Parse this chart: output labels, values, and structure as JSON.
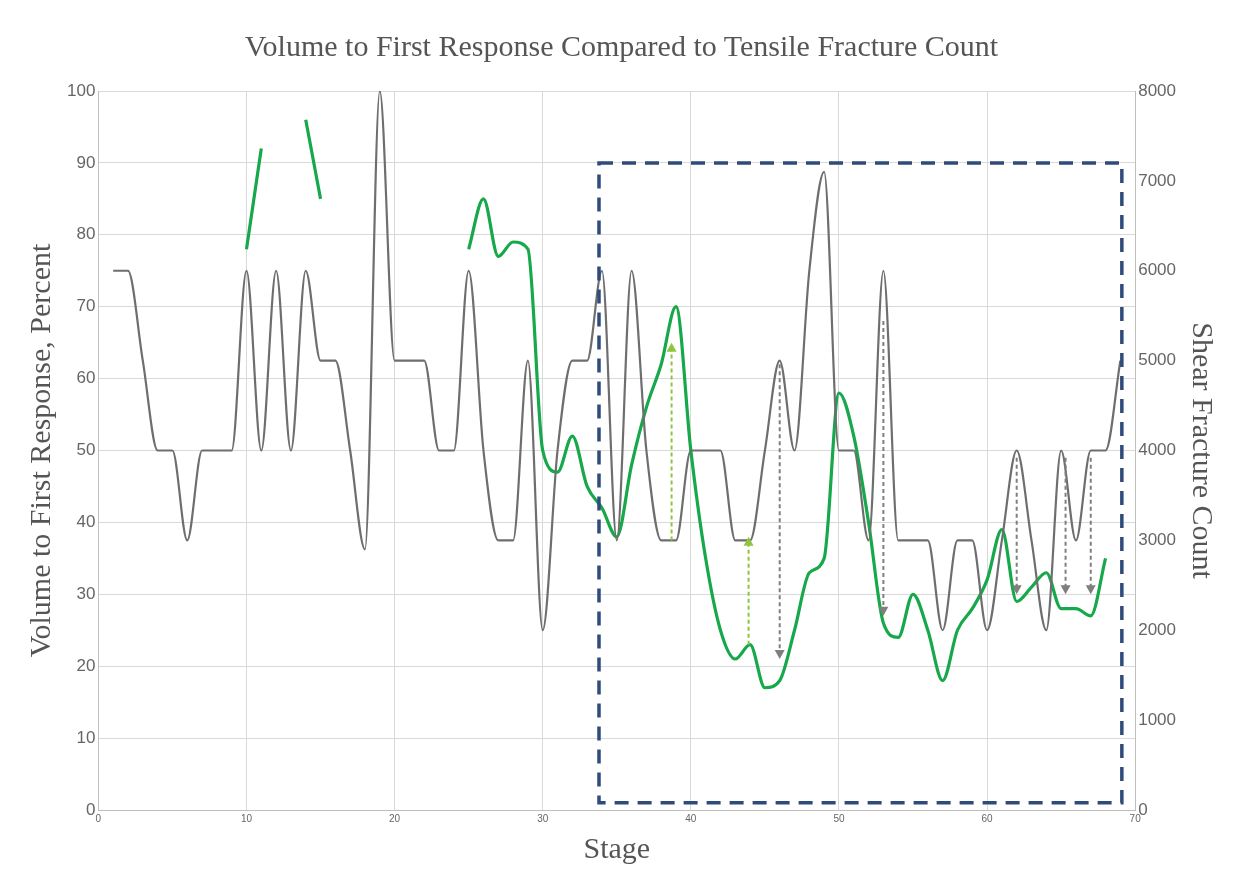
{
  "chart_data": {
    "type": "line",
    "title": "Volume to First Response Compared to Tensile Fracture Count",
    "xlabel": "Stage",
    "ylabel": "Volume to First Response, Percent",
    "y2label": "Shear Fracture Count",
    "x": [
      1,
      2,
      3,
      4,
      5,
      6,
      7,
      8,
      9,
      10,
      11,
      12,
      13,
      14,
      15,
      16,
      17,
      18,
      19,
      20,
      21,
      22,
      23,
      24,
      25,
      26,
      27,
      28,
      29,
      30,
      31,
      32,
      33,
      34,
      35,
      36,
      37,
      38,
      39,
      40,
      41,
      42,
      43,
      44,
      45,
      46,
      47,
      48,
      49,
      50,
      51,
      52,
      53,
      54,
      55,
      56,
      57,
      58,
      59,
      60,
      61,
      62,
      63,
      64,
      65,
      66,
      67,
      68,
      69
    ],
    "series": [
      {
        "axis": "y2",
        "color": "#6e6e6e",
        "values": [
          6000,
          6000,
          5000,
          4000,
          4000,
          3000,
          4000,
          4000,
          4000,
          6000,
          4000,
          6000,
          4000,
          6000,
          5000,
          5000,
          4000,
          2900,
          8000,
          5000,
          5000,
          5000,
          4000,
          4000,
          6000,
          4000,
          3000,
          3000,
          5000,
          2000,
          4000,
          5000,
          5000,
          6000,
          3000,
          6000,
          4000,
          3000,
          3000,
          4000,
          4000,
          4000,
          3000,
          3000,
          4000,
          5000,
          4000,
          6000,
          7100,
          4000,
          4000,
          3000,
          6000,
          3000,
          3000,
          3000,
          2000,
          3000,
          3000,
          2000,
          3000,
          4000,
          3000,
          2000,
          4000,
          3000,
          4000,
          4000,
          5000
        ]
      },
      {
        "color": "#16a84a",
        "values": [
          null,
          null,
          null,
          null,
          null,
          null,
          null,
          null,
          null,
          78,
          92,
          null,
          null,
          96,
          85,
          null,
          null,
          null,
          null,
          null,
          null,
          null,
          null,
          null,
          78,
          85,
          77,
          79,
          78,
          50,
          47,
          52,
          45,
          42,
          38,
          48,
          56,
          62,
          70,
          50,
          35,
          25,
          21,
          23,
          17,
          18,
          25,
          33,
          35,
          58,
          52,
          40,
          26,
          24,
          30,
          25,
          18,
          25,
          28,
          32,
          39,
          29,
          31,
          33,
          28,
          28,
          27,
          35,
          null
        ]
      }
    ],
    "xlim": [
      0,
      70
    ],
    "xticks": [
      0,
      10,
      20,
      30,
      40,
      50,
      60,
      70
    ],
    "ylim": [
      0,
      100
    ],
    "yticks": [
      0,
      10,
      20,
      30,
      40,
      50,
      60,
      70,
      80,
      90,
      100
    ],
    "y2lim": [
      0,
      8000
    ],
    "y2ticks": [
      0,
      1000,
      2000,
      3000,
      4000,
      5000,
      6000,
      7000,
      8000
    ],
    "grid": true,
    "legend": false,
    "marker": "none",
    "line_style": "solid"
  }
}
